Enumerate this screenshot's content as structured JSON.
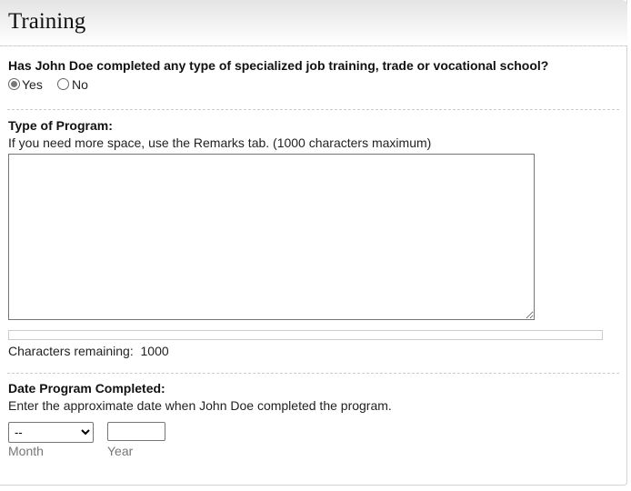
{
  "header": {
    "title": "Training"
  },
  "question": {
    "label": "Has John Doe completed any type of specialized job training, trade or vocational school?",
    "options": [
      {
        "label": "Yes",
        "selected": true
      },
      {
        "label": "No",
        "selected": false
      }
    ]
  },
  "program": {
    "label": "Type of Program:",
    "hint": "If you need more space, use the Remarks tab. (1000 characters maximum)",
    "value": "",
    "progress_percent": 0,
    "remaining_label": "Characters remaining:",
    "remaining": "1000"
  },
  "date": {
    "label": "Date Program Completed:",
    "hint": "Enter the approximate date when John Doe completed the program.",
    "month_value": "--",
    "month_label": "Month",
    "year_value": "",
    "year_label": "Year"
  }
}
